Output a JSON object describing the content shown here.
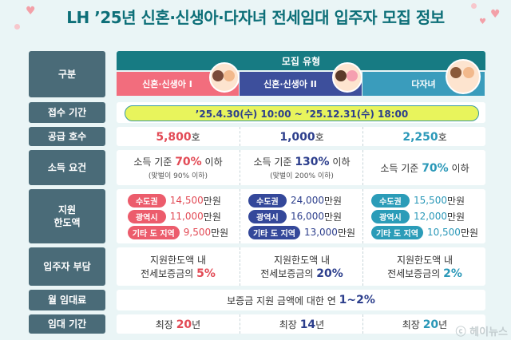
{
  "title": "LH ’25년 신혼·신생아·다자녀 전세임대 입주자 모집 정보",
  "colors": {
    "title": "#0d6f78",
    "row_label": "#4a6b78",
    "header": "#177b83",
    "cat1": "#f26d7d",
    "cat2": "#3d4f9c",
    "cat3": "#3a9cbc",
    "period_bg": "#e8f45c"
  },
  "header": {
    "label": "구분",
    "top": "모집 유형",
    "categories": [
      "신혼·신생아 I",
      "신혼·신생아 II",
      "다자녀"
    ]
  },
  "period": {
    "label": "접수 기간",
    "value": "’25.4.30(수) 10:00 ~ ’25.12.31(수) 18:00"
  },
  "supply": {
    "label": "공급 호수",
    "values": [
      "5,800",
      "1,000",
      "2,250"
    ],
    "unit": "호"
  },
  "income": {
    "label": "소득 요건",
    "prefix": "소득 기준",
    "suffix": "이하",
    "values": [
      "70%",
      "130%",
      "70%"
    ],
    "notes": [
      "(맞벌이 90% 이하)",
      "(맞벌이 200% 이하)",
      ""
    ]
  },
  "support": {
    "label": "지원 한도액",
    "label_line1": "지원",
    "label_line2": "한도액",
    "unit": "만원",
    "regions": [
      "수도권",
      "광역시",
      "기타 도 지역"
    ],
    "columns": [
      [
        "14,500",
        "11,000",
        "9,500"
      ],
      [
        "24,000",
        "16,000",
        "13,000"
      ],
      [
        "15,500",
        "12,000",
        "10,500"
      ]
    ]
  },
  "burden": {
    "label": "입주자 부담",
    "line1": "지원한도액 내",
    "line2": "전세보증금의",
    "values": [
      "5%",
      "20%",
      "2%"
    ]
  },
  "rent": {
    "label": "월 임대료",
    "text": "보증금 지원 금액에 대한 연",
    "value": "1~2%"
  },
  "term": {
    "label": "임대 기간",
    "prefix": "최장",
    "unit": "년",
    "values": [
      "20",
      "14",
      "20"
    ]
  },
  "watermark": "ⓒ 헤이뉴스"
}
